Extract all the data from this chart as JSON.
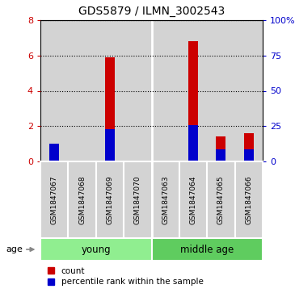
{
  "title": "GDS5879 / ILMN_3002543",
  "samples": [
    "GSM1847067",
    "GSM1847068",
    "GSM1847069",
    "GSM1847070",
    "GSM1847063",
    "GSM1847064",
    "GSM1847065",
    "GSM1847066"
  ],
  "group_defs": [
    {
      "name": "young",
      "start": 0,
      "end": 3,
      "color": "#90EE90"
    },
    {
      "name": "middle age",
      "start": 4,
      "end": 7,
      "color": "#5FCC5F"
    }
  ],
  "count_values": [
    0.4,
    0.0,
    5.9,
    0.0,
    0.0,
    6.8,
    1.4,
    1.6
  ],
  "percentile_values_right": [
    12.5,
    0.0,
    23.0,
    0.0,
    0.0,
    25.5,
    8.5,
    8.5
  ],
  "bar_color_red": "#CC0000",
  "bar_color_blue": "#0000CC",
  "ylim_left": [
    0,
    8
  ],
  "ylim_right": [
    0,
    100
  ],
  "yticks_left": [
    0,
    2,
    4,
    6,
    8
  ],
  "yticks_right": [
    0,
    25,
    50,
    75,
    100
  ],
  "ytick_labels_right": [
    "0",
    "25",
    "50",
    "75",
    "100%"
  ],
  "background_color": "#ffffff",
  "bar_bg_color": "#d3d3d3",
  "bar_width": 0.35,
  "legend_labels": [
    "count",
    "percentile rank within the sample"
  ]
}
